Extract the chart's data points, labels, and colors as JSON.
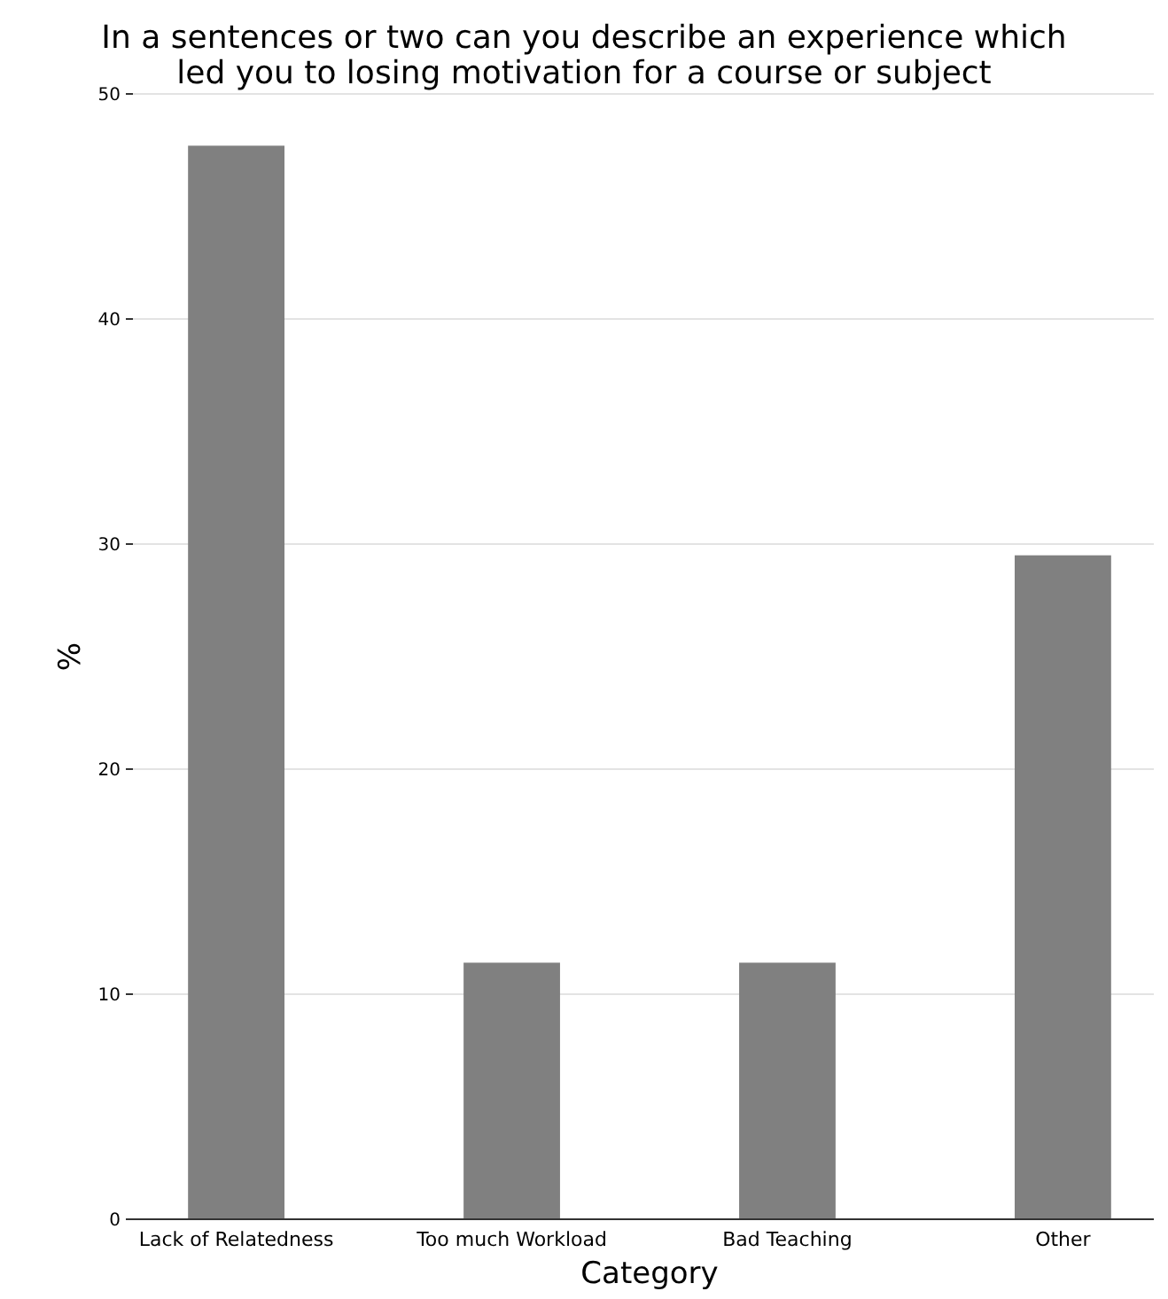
{
  "chart_data": {
    "type": "bar",
    "title": "In a sentences or two can you describe an experience which led you to losing motivation for a course or subject",
    "xlabel": "Category",
    "ylabel": "%",
    "categories": [
      "Lack of Relatedness",
      "Too much Workload",
      "Bad Teaching",
      "Other"
    ],
    "values": [
      47.7,
      11.4,
      11.4,
      29.5
    ],
    "color": "#808080",
    "ylim": [
      0,
      50
    ],
    "yticks": [
      0,
      10,
      20,
      30,
      40,
      50
    ],
    "grid": "y"
  }
}
